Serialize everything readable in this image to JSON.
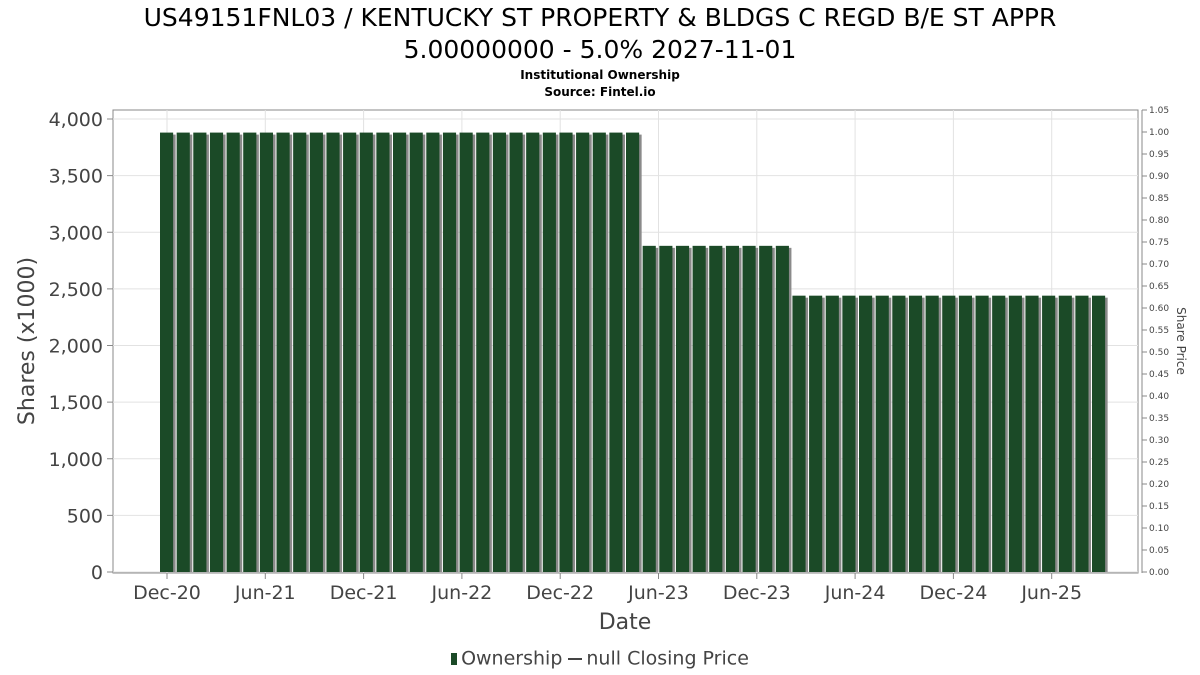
{
  "title_line1": "US49151FNL03 / KENTUCKY ST PROPERTY & BLDGS C REGD B/E ST APPR",
  "title_line2": "5.00000000 - 5.0% 2027-11-01",
  "subtitle1": "Institutional Ownership",
  "subtitle2": "Source: Fintel.io",
  "legend": {
    "ownership": "Ownership",
    "price": "null Closing Price"
  },
  "colors": {
    "bar": "#1b4a27",
    "bar_shadow": "#8a8a8a",
    "grid": "#e2e2e2"
  },
  "chart_data": {
    "type": "bar",
    "xlabel": "Date",
    "ylabel": "Shares (x1000)",
    "y2label": "Share Price",
    "ylim": [
      0,
      4000
    ],
    "y2lim": [
      0,
      1.05
    ],
    "y_ticks": [
      "0",
      "500",
      "1,000",
      "1,500",
      "2,000",
      "2,500",
      "3,000",
      "3,500",
      "4,000"
    ],
    "y2_ticks": [
      "0.00",
      "0.05",
      "0.10",
      "0.15",
      "0.20",
      "0.25",
      "0.30",
      "0.35",
      "0.40",
      "0.45",
      "0.50",
      "0.55",
      "0.60",
      "0.65",
      "0.70",
      "0.75",
      "0.80",
      "0.85",
      "0.90",
      "0.95",
      "1.00",
      "1.05"
    ],
    "x_ticks": [
      "Dec-20",
      "Jun-21",
      "Dec-21",
      "Jun-22",
      "Dec-22",
      "Jun-23",
      "Dec-23",
      "Jun-24",
      "Dec-24",
      "Jun-25"
    ],
    "grid": true,
    "legend_position": "bottom",
    "series": [
      {
        "name": "Ownership",
        "values": [
          3880,
          3880,
          3880,
          3880,
          3880,
          3880,
          3880,
          3880,
          3880,
          3880,
          3880,
          3880,
          3880,
          3880,
          3880,
          3880,
          3880,
          3880,
          3880,
          3880,
          3880,
          3880,
          3880,
          3880,
          3880,
          3880,
          3880,
          3880,
          3880,
          2880,
          2880,
          2880,
          2880,
          2880,
          2880,
          2880,
          2880,
          2880,
          2440,
          2440,
          2440,
          2440,
          2440,
          2440,
          2440,
          2440,
          2440,
          2440,
          2440,
          2440,
          2440,
          2440,
          2440,
          2440,
          2440,
          2440,
          2440
        ]
      }
    ]
  }
}
